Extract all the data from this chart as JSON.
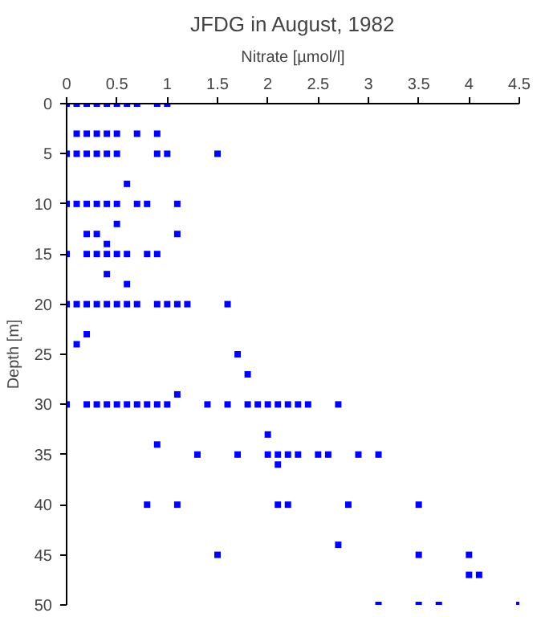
{
  "chart_data": {
    "type": "scatter",
    "title": "JFDG in August, 1982",
    "xlabel": "Nitrate [µmol/l]",
    "ylabel": "Depth [m]",
    "x": [
      0,
      0.1,
      0.2,
      0.3,
      0.4,
      0.5,
      0.6,
      0.7,
      0.9,
      1.0,
      0.1,
      0.2,
      0.3,
      0.4,
      0.5,
      0.7,
      0.9,
      0,
      0.1,
      0.2,
      0.3,
      0.4,
      0.5,
      0.9,
      1.0,
      1.5,
      0.6,
      0,
      0.1,
      0.2,
      0.3,
      0.4,
      0.5,
      0.7,
      0.8,
      1.1,
      0.5,
      0.2,
      0.3,
      1.1,
      0.4,
      0,
      0.2,
      0.3,
      0.4,
      0.5,
      0.6,
      0.8,
      0.9,
      0.4,
      0.6,
      0,
      0.1,
      0.2,
      0.3,
      0.4,
      0.5,
      0.6,
      0.7,
      0.9,
      1.0,
      1.1,
      1.2,
      1.6,
      0.2,
      0.1,
      1.7,
      1.8,
      1.1,
      0,
      0.2,
      0.3,
      0.4,
      0.5,
      0.6,
      0.7,
      0.8,
      0.9,
      1.0,
      1.4,
      1.6,
      1.8,
      1.9,
      2.0,
      2.1,
      2.2,
      2.3,
      2.4,
      2.7,
      2.0,
      0.9,
      1.3,
      1.7,
      2.0,
      2.1,
      2.2,
      2.3,
      2.5,
      2.6,
      2.9,
      3.1,
      2.1,
      0.8,
      1.1,
      2.1,
      2.2,
      2.8,
      3.5,
      2.7,
      1.5,
      3.5,
      4.0,
      4.0,
      4.1,
      3.1,
      3.5,
      3.7,
      4.5
    ],
    "values": [
      0,
      0,
      0,
      0,
      0,
      0,
      0,
      0,
      0,
      0,
      3,
      3,
      3,
      3,
      3,
      3,
      3,
      5,
      5,
      5,
      5,
      5,
      5,
      5,
      5,
      5,
      8,
      10,
      10,
      10,
      10,
      10,
      10,
      10,
      10,
      10,
      12,
      13,
      13,
      13,
      14,
      15,
      15,
      15,
      15,
      15,
      15,
      15,
      15,
      17,
      18,
      20,
      20,
      20,
      20,
      20,
      20,
      20,
      20,
      20,
      20,
      20,
      20,
      20,
      23,
      24,
      25,
      27,
      29,
      30,
      30,
      30,
      30,
      30,
      30,
      30,
      30,
      30,
      30,
      30,
      30,
      30,
      30,
      30,
      30,
      30,
      30,
      30,
      30,
      33,
      34,
      35,
      35,
      35,
      35,
      35,
      35,
      35,
      35,
      35,
      35,
      36,
      40,
      40,
      40,
      40,
      40,
      40,
      44,
      45,
      45,
      45,
      47,
      47,
      50,
      50,
      50,
      50
    ],
    "color": "#0000ff",
    "marker": "square",
    "xlim": [
      0,
      4.5
    ],
    "xticks": [
      0,
      0.5,
      1,
      1.5,
      2,
      2.5,
      3,
      3.5,
      4,
      4.5
    ],
    "ylim": [
      50,
      0
    ],
    "yticks": [
      0,
      5,
      10,
      15,
      20,
      25,
      30,
      35,
      40,
      45,
      50
    ],
    "grid": false
  }
}
